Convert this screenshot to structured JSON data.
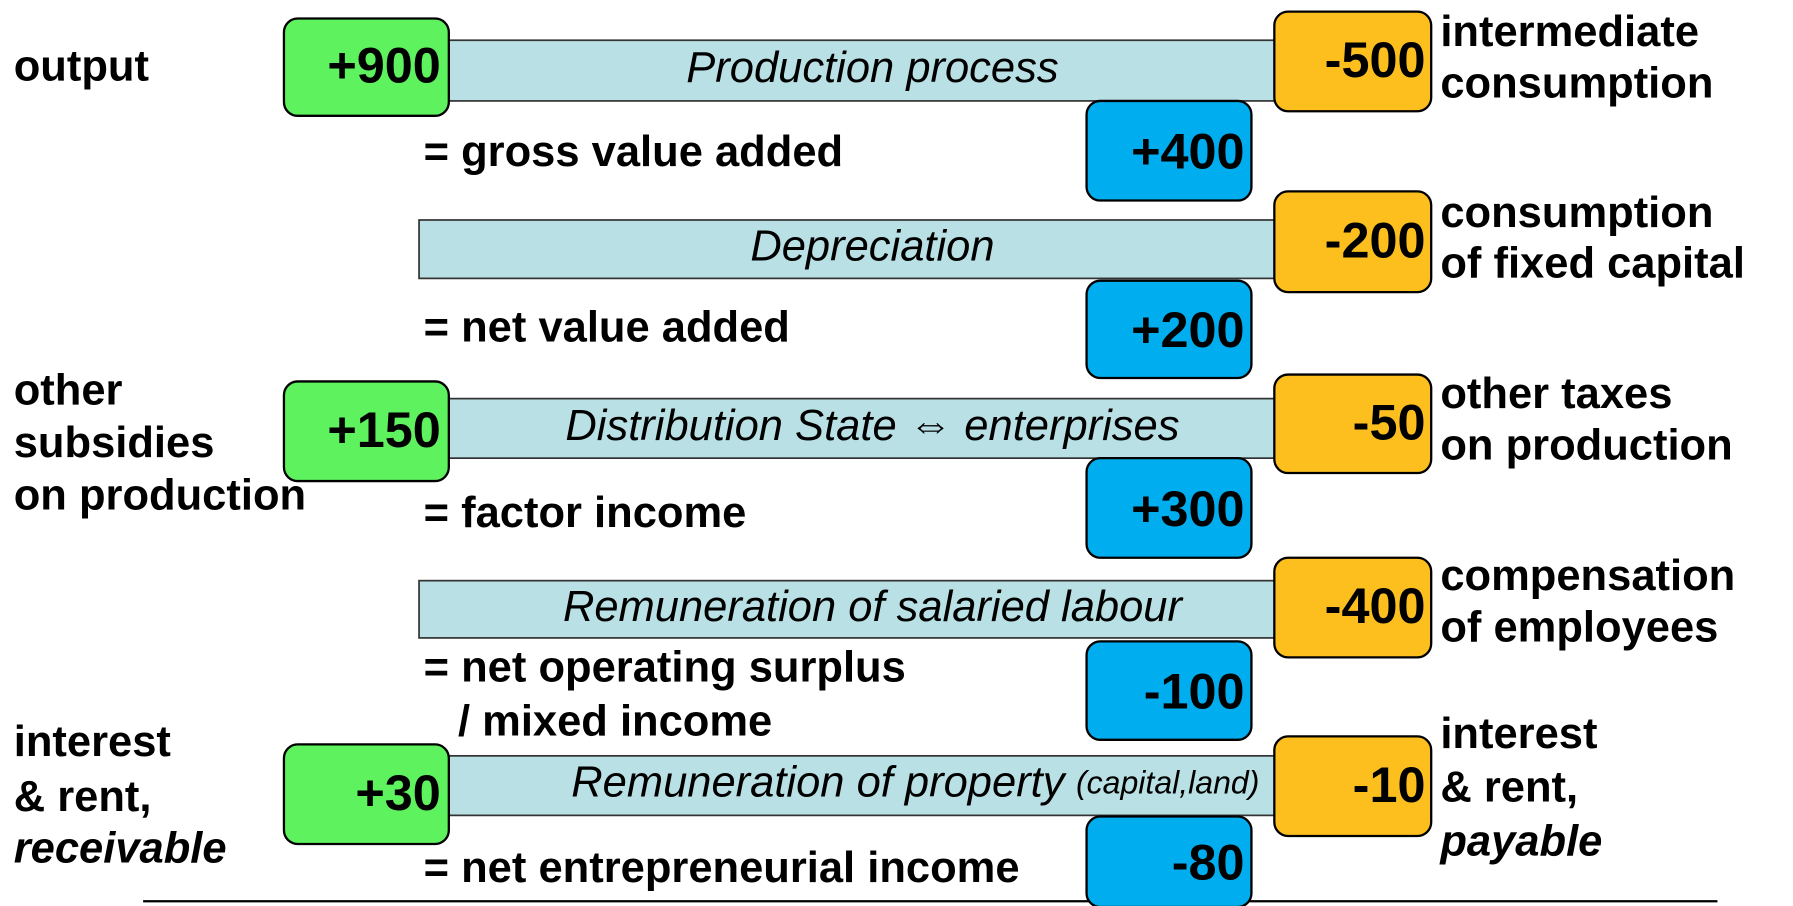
{
  "steps": [
    {
      "left_label": [
        "output"
      ],
      "left_value": "+900",
      "process": "Production process",
      "right_value": "-500",
      "right_label": [
        "intermediate",
        "consumption"
      ],
      "result_label": [
        "= gross value added"
      ],
      "result_value": "+400"
    },
    {
      "process": "Depreciation",
      "right_value": "-200",
      "right_label": [
        "consumption",
        "of fixed capital"
      ],
      "result_label": [
        "= net value added"
      ],
      "result_value": "+200"
    },
    {
      "left_label": [
        "other",
        "subsidies",
        "on production"
      ],
      "left_value": "+150",
      "process": "Distribution State ⇔ enterprises",
      "right_value": "-50",
      "right_label": [
        "other taxes",
        "on production"
      ],
      "result_label": [
        "= factor income"
      ],
      "result_value": "+300"
    },
    {
      "process": "Remuneration of salaried labour",
      "right_value": "-400",
      "right_label": [
        "compensation",
        "of employees"
      ],
      "result_label": [
        "= net operating surplus",
        "/ mixed income"
      ],
      "result_value": "-100"
    },
    {
      "left_label": [
        "interest",
        "& rent,",
        "receivable"
      ],
      "left_value": "+30",
      "process": "Remuneration of property",
      "process_note": "(capital,land)",
      "right_value": "-10",
      "right_label": [
        "interest",
        "& rent,",
        "payable"
      ],
      "result_label": [
        "= net entrepreneurial income"
      ],
      "result_value": "-80"
    }
  ]
}
